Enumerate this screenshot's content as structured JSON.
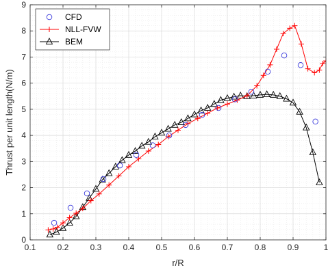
{
  "chart_data": {
    "type": "line",
    "title": "",
    "xlabel": "r/R",
    "ylabel": "Thrust per unit length(N/m)",
    "xlim": [
      0.1,
      1.0
    ],
    "ylim": [
      0,
      9
    ],
    "xticks": [
      "0.1",
      "0.2",
      "0.3",
      "0.4",
      "0.5",
      "0.6",
      "0.7",
      "0.8",
      "0.9",
      "1"
    ],
    "yticks": [
      "0",
      "1",
      "2",
      "3",
      "4",
      "5",
      "6",
      "7",
      "8",
      "9"
    ],
    "grid": true,
    "minor_grid": true,
    "legend_position": "top-left",
    "series": [
      {
        "name": "CFD",
        "style": "markers",
        "marker": "circle",
        "color": "#3c3cdc",
        "x": [
          0.173,
          0.223,
          0.273,
          0.323,
          0.373,
          0.423,
          0.473,
          0.523,
          0.573,
          0.623,
          0.673,
          0.723,
          0.773,
          0.823,
          0.873,
          0.923,
          0.968
        ],
        "y": [
          0.65,
          1.23,
          1.78,
          2.33,
          2.85,
          3.25,
          3.62,
          4.0,
          4.4,
          4.78,
          5.05,
          5.38,
          5.67,
          6.44,
          7.06,
          6.69,
          4.53
        ]
      },
      {
        "name": "NLL-FVW",
        "style": "line+markers",
        "marker": "plus",
        "color": "#ff0000",
        "x": [
          0.155,
          0.17,
          0.183,
          0.2,
          0.22,
          0.24,
          0.26,
          0.285,
          0.31,
          0.34,
          0.37,
          0.4,
          0.43,
          0.46,
          0.49,
          0.52,
          0.55,
          0.58,
          0.61,
          0.64,
          0.67,
          0.7,
          0.73,
          0.76,
          0.79,
          0.81,
          0.83,
          0.85,
          0.87,
          0.89,
          0.905,
          0.925,
          0.945,
          0.965,
          0.98,
          0.99,
          1.0
        ],
        "y": [
          0.38,
          0.42,
          0.48,
          0.65,
          0.85,
          1.02,
          1.2,
          1.5,
          1.76,
          2.1,
          2.45,
          2.8,
          3.1,
          3.4,
          3.65,
          3.95,
          4.2,
          4.45,
          4.65,
          4.85,
          5.05,
          5.2,
          5.35,
          5.52,
          5.9,
          6.3,
          6.7,
          7.3,
          7.9,
          8.1,
          8.2,
          7.5,
          6.55,
          6.4,
          6.5,
          6.75,
          6.85
        ]
      },
      {
        "name": "BEM",
        "style": "line+markers",
        "marker": "triangle",
        "color": "#000000",
        "x": [
          0.16,
          0.18,
          0.2,
          0.22,
          0.24,
          0.26,
          0.28,
          0.3,
          0.32,
          0.34,
          0.36,
          0.38,
          0.4,
          0.42,
          0.44,
          0.46,
          0.48,
          0.5,
          0.52,
          0.54,
          0.56,
          0.58,
          0.6,
          0.62,
          0.64,
          0.66,
          0.68,
          0.7,
          0.72,
          0.74,
          0.76,
          0.78,
          0.8,
          0.82,
          0.84,
          0.86,
          0.88,
          0.9,
          0.92,
          0.94,
          0.96,
          0.98
        ],
        "y": [
          0.2,
          0.3,
          0.45,
          0.65,
          0.9,
          1.25,
          1.6,
          1.95,
          2.3,
          2.55,
          2.8,
          3.05,
          3.25,
          3.4,
          3.6,
          3.75,
          3.95,
          4.1,
          4.25,
          4.4,
          4.5,
          4.65,
          4.8,
          4.95,
          5.05,
          5.2,
          5.35,
          5.42,
          5.48,
          5.52,
          5.5,
          5.52,
          5.55,
          5.57,
          5.55,
          5.5,
          5.4,
          5.25,
          4.9,
          4.3,
          3.35,
          2.2
        ]
      }
    ]
  }
}
